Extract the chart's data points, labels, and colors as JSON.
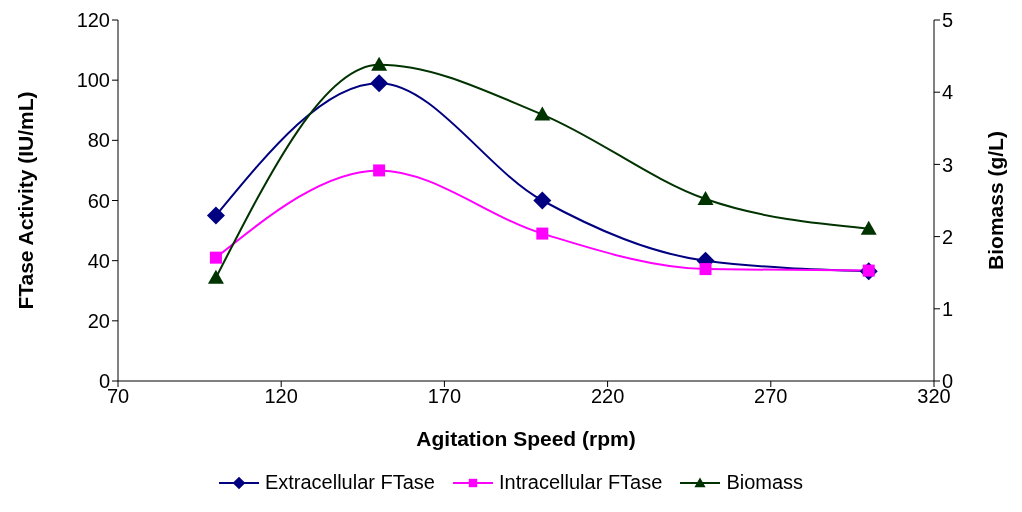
{
  "chart_data": {
    "type": "line",
    "xlabel": "Agitation Speed (rpm)",
    "ylabel": "FTase Activity (IU/mL)",
    "y2label": "Biomass (g/L)",
    "x": [
      100,
      150,
      200,
      250,
      300
    ],
    "series": [
      {
        "name": "Extracellular FTase",
        "color": "#000080",
        "marker": "diamond",
        "values": [
          55,
          99,
          60,
          40,
          36.5
        ]
      },
      {
        "name": "Intracellular FTase",
        "color": "#ff00ff",
        "marker": "square",
        "values": [
          41,
          70,
          49,
          37.2,
          36.7
        ]
      },
      {
        "name": "Biomass",
        "color": "#003300",
        "marker": "triangle",
        "axis": "y2",
        "values": [
          1.43,
          4.38,
          3.69,
          2.52,
          2.11
        ]
      }
    ],
    "xlim": [
      70,
      320
    ],
    "xticks": [
      70,
      120,
      170,
      220,
      270,
      320
    ],
    "ylim": [
      0,
      120
    ],
    "yticks": [
      0,
      20,
      40,
      60,
      80,
      100,
      120
    ],
    "y2lim": [
      0,
      5
    ],
    "y2ticks": [
      0,
      1,
      2,
      3,
      4,
      5
    ],
    "grid": false,
    "legend": "bottom",
    "line_style": "solid"
  }
}
